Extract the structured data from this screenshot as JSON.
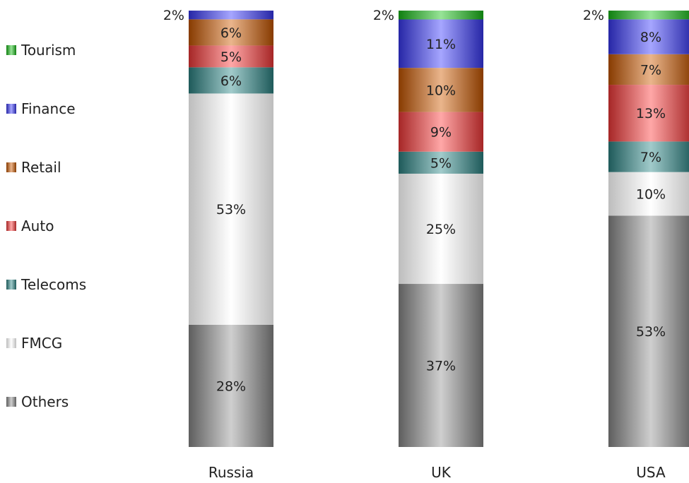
{
  "chart_data": {
    "type": "bar",
    "stacked": true,
    "normalized": true,
    "categories": [
      "Russia",
      "UK",
      "USA"
    ],
    "series": [
      {
        "name": "Others",
        "values": [
          28,
          37,
          53
        ],
        "labels": [
          "28%",
          "37%",
          "53%"
        ],
        "color": "#8a8a8a"
      },
      {
        "name": "FMCG",
        "values": [
          53,
          25,
          10
        ],
        "labels": [
          "53%",
          "25%",
          "10%"
        ],
        "color": "#f2f2f2"
      },
      {
        "name": "Telecoms",
        "values": [
          6,
          5,
          7
        ],
        "labels": [
          "6%",
          "5%",
          "7%"
        ],
        "color": "#2e8b8b"
      },
      {
        "name": "Auto",
        "values": [
          5,
          9,
          13
        ],
        "labels": [
          "5%",
          "9%",
          "13%"
        ],
        "color": "#ff3b3b"
      },
      {
        "name": "Retail",
        "values": [
          6,
          10,
          7
        ],
        "labels": [
          "6%",
          "10%",
          "7%"
        ],
        "color": "#d05a00"
      },
      {
        "name": "Finance",
        "values": [
          2,
          11,
          8
        ],
        "labels": [
          "2%",
          "11%",
          "8%"
        ],
        "color": "#3a3aff"
      },
      {
        "name": "Tourism",
        "values": [
          0,
          2,
          2
        ],
        "labels": [
          "",
          "2%",
          "2%"
        ],
        "color": "#18c418"
      }
    ],
    "legend": {
      "position": "left",
      "entries": [
        "Tourism",
        "Finance",
        "Retail",
        "Auto",
        "Telecoms",
        "FMCG",
        "Others"
      ]
    },
    "ylim": [
      0,
      100
    ],
    "grid": false
  }
}
